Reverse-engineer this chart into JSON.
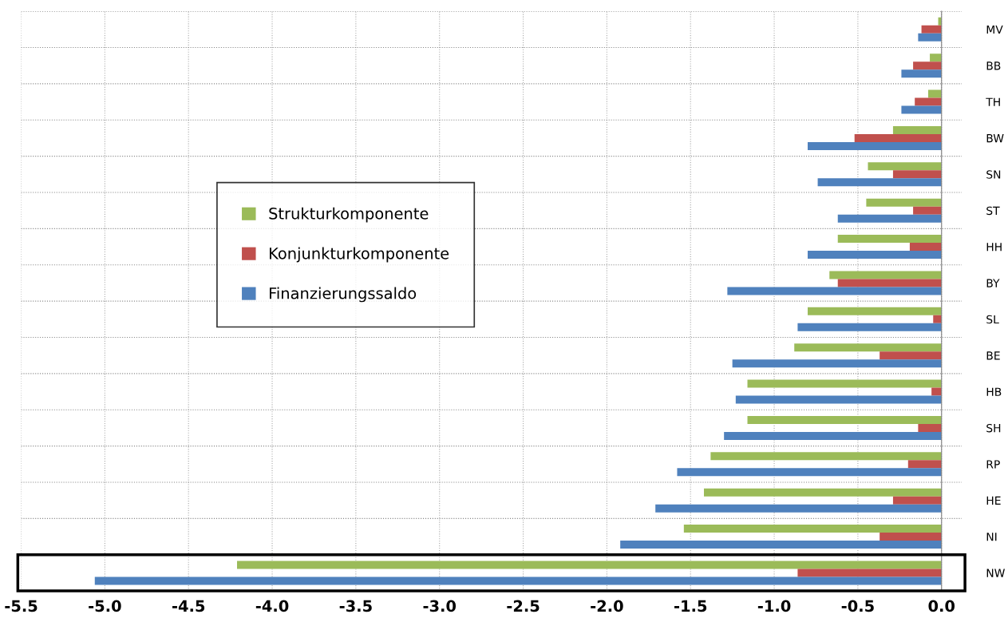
{
  "chart_data": {
    "type": "bar",
    "orientation": "horizontal",
    "categories": [
      "MV",
      "BB",
      "TH",
      "BW",
      "SN",
      "ST",
      "HH",
      "BY",
      "SL",
      "BE",
      "HB",
      "SH",
      "RP",
      "HE",
      "NI",
      "NW"
    ],
    "series": [
      {
        "name": "Strukturkomponente",
        "color": "#9bbb59",
        "values": [
          -0.02,
          -0.07,
          -0.08,
          -0.29,
          -0.44,
          -0.45,
          -0.62,
          -0.67,
          -0.8,
          -0.88,
          -1.16,
          -1.16,
          -1.38,
          -1.42,
          -1.54,
          -4.21
        ]
      },
      {
        "name": "Konjunkturkomponente",
        "color": "#c0504d",
        "values": [
          -0.12,
          -0.17,
          -0.16,
          -0.52,
          -0.29,
          -0.17,
          -0.19,
          -0.62,
          -0.05,
          -0.37,
          -0.06,
          -0.14,
          -0.2,
          -0.29,
          -0.37,
          -0.86
        ]
      },
      {
        "name": "Finanzierungssaldo",
        "color": "#4f81bd",
        "values": [
          -0.14,
          -0.24,
          -0.24,
          -0.8,
          -0.74,
          -0.62,
          -0.8,
          -1.28,
          -0.86,
          -1.25,
          -1.23,
          -1.3,
          -1.58,
          -1.71,
          -1.92,
          -5.06
        ]
      }
    ],
    "xlim": [
      -5.5,
      0.12
    ],
    "xticks": [
      {
        "value": -5.5,
        "label": "-5.5"
      },
      {
        "value": -5.0,
        "label": "-5.0"
      },
      {
        "value": -4.5,
        "label": "-4.5"
      },
      {
        "value": -4.0,
        "label": "-4.0"
      },
      {
        "value": -3.5,
        "label": "-3.5"
      },
      {
        "value": -3.0,
        "label": "-3.0"
      },
      {
        "value": -2.5,
        "label": "-2.5"
      },
      {
        "value": -2.0,
        "label": "-2.0"
      },
      {
        "value": -1.5,
        "label": "-1.5"
      },
      {
        "value": -1.0,
        "label": "-1.0"
      },
      {
        "value": -0.5,
        "label": "-0.5"
      },
      {
        "value": 0.0,
        "label": "0.0"
      }
    ],
    "grid": true,
    "legend": "left"
  }
}
